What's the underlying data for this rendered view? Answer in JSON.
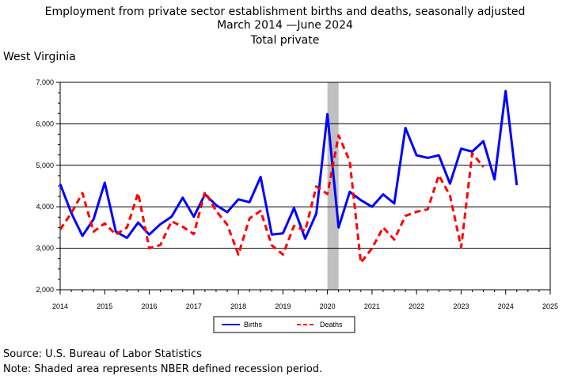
{
  "header": {
    "title": "Employment from private sector establishment births and deaths, seasonally adjusted",
    "period_start": "March 2014",
    "period_end": "June 2024",
    "subtitle": "Total private",
    "region": "West Virginia"
  },
  "footer": {
    "source": "Source: U.S. Bureau of Labor Statistics",
    "note": "Note: Shaded area represents NBER defined recession period."
  },
  "chart_data": {
    "type": "line",
    "title": "Employment from private sector establishment births and deaths, seasonally adjusted",
    "xlim": [
      2014,
      2025
    ],
    "ylim": [
      2000,
      7000
    ],
    "x_ticks": [
      2014,
      2015,
      2016,
      2017,
      2018,
      2019,
      2020,
      2021,
      2022,
      2023,
      2024,
      2025
    ],
    "x_tick_labels": [
      "2014",
      "2015",
      "2016",
      "2017",
      "2018",
      "2019",
      "2020",
      "2021",
      "2022",
      "2023",
      "2024",
      "2025"
    ],
    "y_ticks": [
      2000,
      3000,
      4000,
      5000,
      6000,
      7000
    ],
    "y_tick_labels": [
      "2,000",
      "3,000",
      "4,000",
      "5,000",
      "6,000",
      "7,000"
    ],
    "grid": "horizontal",
    "legend_position": "bottom-center",
    "recession_shading": [
      {
        "start": 2020.0,
        "end": 2020.25
      }
    ],
    "x": [
      2014.0,
      2014.25,
      2014.5,
      2014.75,
      2015.0,
      2015.25,
      2015.5,
      2015.75,
      2016.0,
      2016.25,
      2016.5,
      2016.75,
      2017.0,
      2017.25,
      2017.5,
      2017.75,
      2018.0,
      2018.25,
      2018.5,
      2018.75,
      2019.0,
      2019.25,
      2019.5,
      2019.75,
      2020.0,
      2020.25,
      2020.5,
      2020.75,
      2021.0,
      2021.25,
      2021.5,
      2021.75,
      2022.0,
      2022.25,
      2022.5,
      2022.75,
      2023.0,
      2023.25,
      2023.5,
      2023.75,
      2024.0,
      2024.25
    ],
    "series": [
      {
        "name": "Births",
        "color": "#0000ff",
        "style": "solid",
        "values": [
          4550,
          3850,
          3300,
          3700,
          4580,
          3400,
          3250,
          3620,
          3330,
          3580,
          3760,
          4220,
          3760,
          4300,
          4040,
          3870,
          4180,
          4110,
          4720,
          3330,
          3360,
          3970,
          3230,
          3840,
          6230,
          3500,
          4360,
          4160,
          4000,
          4300,
          4080,
          5900,
          5240,
          5180,
          5240,
          4560,
          5400,
          5330,
          5580,
          4660,
          6790,
          4520
        ]
      },
      {
        "name": "Deaths",
        "color": "#ff0000",
        "style": "dashed",
        "values": [
          3450,
          3850,
          4330,
          3400,
          3600,
          3330,
          3500,
          4330,
          3000,
          3080,
          3650,
          3520,
          3340,
          4360,
          3900,
          3570,
          2850,
          3720,
          3900,
          3070,
          2850,
          3540,
          3420,
          4490,
          4310,
          5720,
          5100,
          2650,
          3000,
          3500,
          3210,
          3780,
          3880,
          3940,
          4760,
          4270,
          3020,
          5290,
          4960,
          null,
          null,
          null
        ]
      }
    ]
  },
  "legend": {
    "births_label": "Births",
    "deaths_label": "Deaths"
  }
}
